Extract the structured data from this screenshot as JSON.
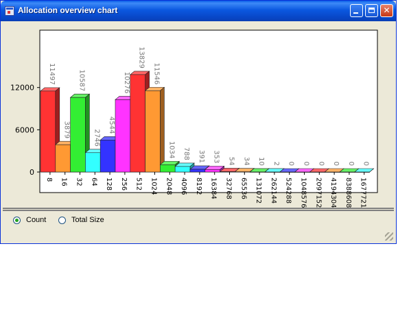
{
  "window": {
    "title": "Allocation overview chart",
    "controls": {
      "minimize_icon": "minimize-icon",
      "maximize_icon": "maximize-icon",
      "close_label": "✕"
    }
  },
  "options": [
    {
      "label": "Count",
      "selected": true
    },
    {
      "label": "Total Size",
      "selected": false
    }
  ],
  "chart_data": {
    "type": "bar",
    "title": "",
    "xlabel": "",
    "ylabel": "",
    "ylim": [
      0,
      18000
    ],
    "y_ticks": [
      0,
      6000,
      12000
    ],
    "grid": false,
    "categories": [
      "8",
      "16",
      "32",
      "64",
      "128",
      "256",
      "512",
      "1024",
      "2048",
      "4096",
      "8192",
      "16384",
      "32768",
      "65536",
      "131072",
      "262144",
      "524288",
      "1048576",
      "2097152",
      "4194304",
      "8388608",
      "16777216"
    ],
    "values": [
      11497,
      3879,
      10587,
      2746,
      4544,
      10276,
      13829,
      11546,
      1034,
      788,
      391,
      353,
      54,
      34,
      10,
      2,
      0,
      0,
      0,
      0,
      0,
      0
    ],
    "colors": [
      "#ff3333",
      "#ff9933",
      "#33ee33",
      "#33ffff",
      "#3333ff",
      "#ff33ff",
      "#ff3333",
      "#ff9933",
      "#33ee33",
      "#33ffff",
      "#3333ff",
      "#ff33ff",
      "#ff3333",
      "#ff9933",
      "#33ee33",
      "#33ffff",
      "#3333ff",
      "#ff33ff",
      "#ff3333",
      "#ff9933",
      "#33ee33",
      "#33ffff"
    ]
  }
}
